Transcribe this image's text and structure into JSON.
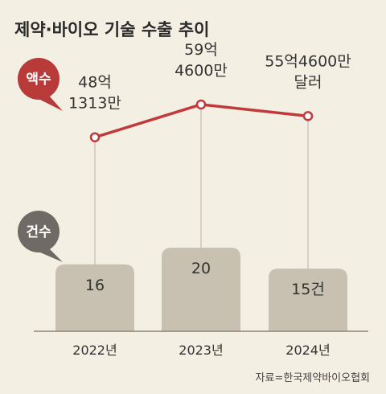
{
  "title": "제약·바이오 기술 수출 추이",
  "source": "자료=한국제약바이오협회",
  "colors": {
    "background": "#f4efe3",
    "line": "#c0393b",
    "badge_amount": "#b83a39",
    "badge_count": "#6e6b66",
    "bar": "#c8c0b0",
    "guide": "#b9b3a6",
    "axis": "#8a8478"
  },
  "chart_data": {
    "type": "bar+line",
    "categories": [
      "2022년",
      "2023년",
      "2024년"
    ],
    "series": [
      {
        "name": "액수",
        "type": "line",
        "values_won": [
          4813130000,
          5946000000,
          5546000000
        ],
        "labels": [
          [
            "48억",
            "1313만"
          ],
          [
            "59억",
            "4600만"
          ],
          [
            "55억4600만",
            "달러"
          ]
        ]
      },
      {
        "name": "건수",
        "type": "bar",
        "values": [
          16,
          20,
          15
        ],
        "labels": [
          "16",
          "20",
          "15건"
        ]
      }
    ]
  }
}
